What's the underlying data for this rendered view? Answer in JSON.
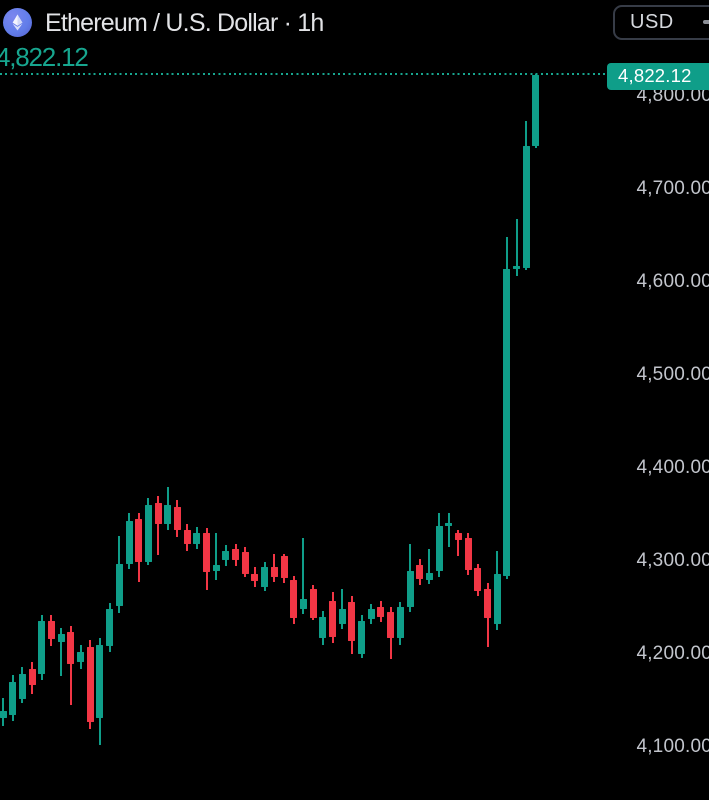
{
  "header": {
    "title": "Ethereum / U.S. Dollar · 1h",
    "currency_button_label": "USD"
  },
  "price_scale": {
    "current_price_label": "4,822.12",
    "ticks": [
      "4,800.00",
      "4,700.00",
      "4,600.00",
      "4,500.00",
      "4,400.00",
      "4,300.00",
      "4,200.00",
      "4,100.00"
    ],
    "tick_values": [
      4800,
      4700,
      4600,
      4500,
      4400,
      4300,
      4200,
      4100
    ]
  },
  "chart_data": {
    "type": "candlestick",
    "title": "Ethereum / U.S. Dollar",
    "interval": "1h",
    "currency": "USD",
    "current_price": 4822.12,
    "ylim": [
      4060,
      4850
    ],
    "grid": false,
    "legend": "none",
    "colors": {
      "up": "#0f9e89",
      "down": "#f23645",
      "accent_line": "#17a68f",
      "tag_bg": "#0f9e89",
      "axis_text": "#c2c5cc",
      "title_text": "#e2e3e6",
      "eth_brand": "#627eea",
      "background": "#000000"
    },
    "candle_columns": [
      "open",
      "high",
      "low",
      "close"
    ],
    "candles": [
      [
        4131,
        4153,
        4123,
        4139
      ],
      [
        4134,
        4177,
        4128,
        4170
      ],
      [
        4152,
        4186,
        4147,
        4179
      ],
      [
        4184,
        4191,
        4157,
        4167
      ],
      [
        4178,
        4242,
        4172,
        4235
      ],
      [
        4235,
        4242,
        4208,
        4216
      ],
      [
        4213,
        4228,
        4176,
        4221
      ],
      [
        4224,
        4230,
        4145,
        4189
      ],
      [
        4191,
        4210,
        4184,
        4202
      ],
      [
        4208,
        4215,
        4119,
        4127
      ],
      [
        4131,
        4217,
        4102,
        4210
      ],
      [
        4208,
        4255,
        4202,
        4248
      ],
      [
        4251,
        4327,
        4244,
        4297
      ],
      [
        4297,
        4352,
        4291,
        4343
      ],
      [
        4345,
        4352,
        4277,
        4299
      ],
      [
        4299,
        4368,
        4295,
        4360
      ],
      [
        4362,
        4370,
        4306,
        4340
      ],
      [
        4340,
        4380,
        4333,
        4360
      ],
      [
        4358,
        4366,
        4326,
        4333
      ],
      [
        4333,
        4340,
        4311,
        4318
      ],
      [
        4318,
        4336,
        4313,
        4330
      ],
      [
        4330,
        4335,
        4269,
        4288
      ],
      [
        4289,
        4330,
        4280,
        4296
      ],
      [
        4301,
        4317,
        4295,
        4311
      ],
      [
        4313,
        4318,
        4294,
        4301
      ],
      [
        4310,
        4315,
        4283,
        4286
      ],
      [
        4286,
        4293,
        4272,
        4278
      ],
      [
        4272,
        4299,
        4268,
        4294
      ],
      [
        4294,
        4307,
        4277,
        4283
      ],
      [
        4305,
        4308,
        4276,
        4281
      ],
      [
        4279,
        4284,
        4232,
        4238
      ],
      [
        4248,
        4325,
        4243,
        4259
      ],
      [
        4270,
        4274,
        4236,
        4239
      ],
      [
        4217,
        4246,
        4210,
        4240
      ],
      [
        4257,
        4267,
        4212,
        4218
      ],
      [
        4232,
        4270,
        4227,
        4248
      ],
      [
        4256,
        4262,
        4200,
        4214
      ],
      [
        4200,
        4242,
        4196,
        4235
      ],
      [
        4237,
        4254,
        4232,
        4248
      ],
      [
        4251,
        4257,
        4234,
        4240
      ],
      [
        4245,
        4250,
        4194,
        4217
      ],
      [
        4217,
        4256,
        4210,
        4250
      ],
      [
        4250,
        4318,
        4245,
        4289
      ],
      [
        4296,
        4302,
        4274,
        4280
      ],
      [
        4280,
        4313,
        4275,
        4287
      ],
      [
        4289,
        4352,
        4283,
        4338
      ],
      [
        4338,
        4352,
        4315,
        4341
      ],
      [
        4330,
        4333,
        4305,
        4322
      ],
      [
        4325,
        4330,
        4285,
        4290
      ],
      [
        4292,
        4297,
        4262,
        4268
      ],
      [
        4270,
        4276,
        4207,
        4239
      ],
      [
        4232,
        4311,
        4226,
        4286
      ],
      [
        4284,
        4648,
        4280,
        4614
      ],
      [
        4614,
        4668,
        4606,
        4617
      ],
      [
        4615,
        4773,
        4613,
        4746
      ],
      [
        4746,
        4823,
        4744,
        4822.12
      ]
    ]
  }
}
